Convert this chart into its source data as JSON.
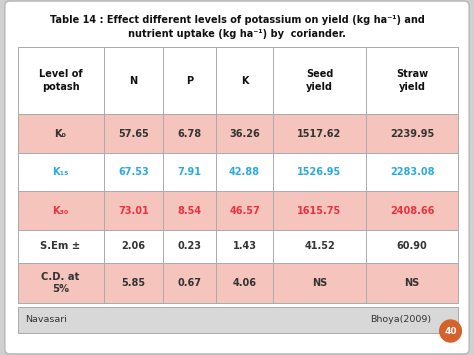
{
  "title_line1": "Table 14 : Effect different levels of potassium on yield (kg ha⁻¹) and",
  "title_line2": "nutrient uptake (kg ha⁻¹) by  coriander.",
  "col_headers": [
    "Level of\npotash",
    "N",
    "P",
    "K",
    "Seed\nyield",
    "Straw\nyield"
  ],
  "rows": [
    {
      "label": "K₀",
      "values": [
        "57.65",
        "6.78",
        "36.26",
        "1517.62",
        "2239.95"
      ],
      "label_color": "#333333",
      "value_color": "#333333",
      "bg": "#f5c5bd"
    },
    {
      "label": "K₁₅",
      "values": [
        "67.53",
        "7.91",
        "42.88",
        "1526.95",
        "2283.08"
      ],
      "label_color": "#29abe2",
      "value_color": "#29abe2",
      "bg": "#ffffff"
    },
    {
      "label": "K₃₀",
      "values": [
        "73.01",
        "8.54",
        "46.57",
        "1615.75",
        "2408.66"
      ],
      "label_color": "#e8333c",
      "value_color": "#e8333c",
      "bg": "#f5c5bd"
    },
    {
      "label": "S.Em ±",
      "values": [
        "2.06",
        "0.23",
        "1.43",
        "41.52",
        "60.90"
      ],
      "label_color": "#333333",
      "value_color": "#333333",
      "bg": "#ffffff"
    },
    {
      "label": "C.D. at\n5%",
      "values": [
        "5.85",
        "0.67",
        "4.06",
        "NS",
        "NS"
      ],
      "label_color": "#333333",
      "value_color": "#333333",
      "bg": "#f5c5bd"
    }
  ],
  "footer_left": "Navasari",
  "footer_right": "Bhoya(2009)",
  "outer_bg": "#d0d0d0",
  "card_bg": "white",
  "header_bg": "#ffffff",
  "table_border": "#aaaaaa",
  "footer_bg": "#d8d8d8",
  "page_num": "40",
  "page_circle_color": "#d4622a"
}
